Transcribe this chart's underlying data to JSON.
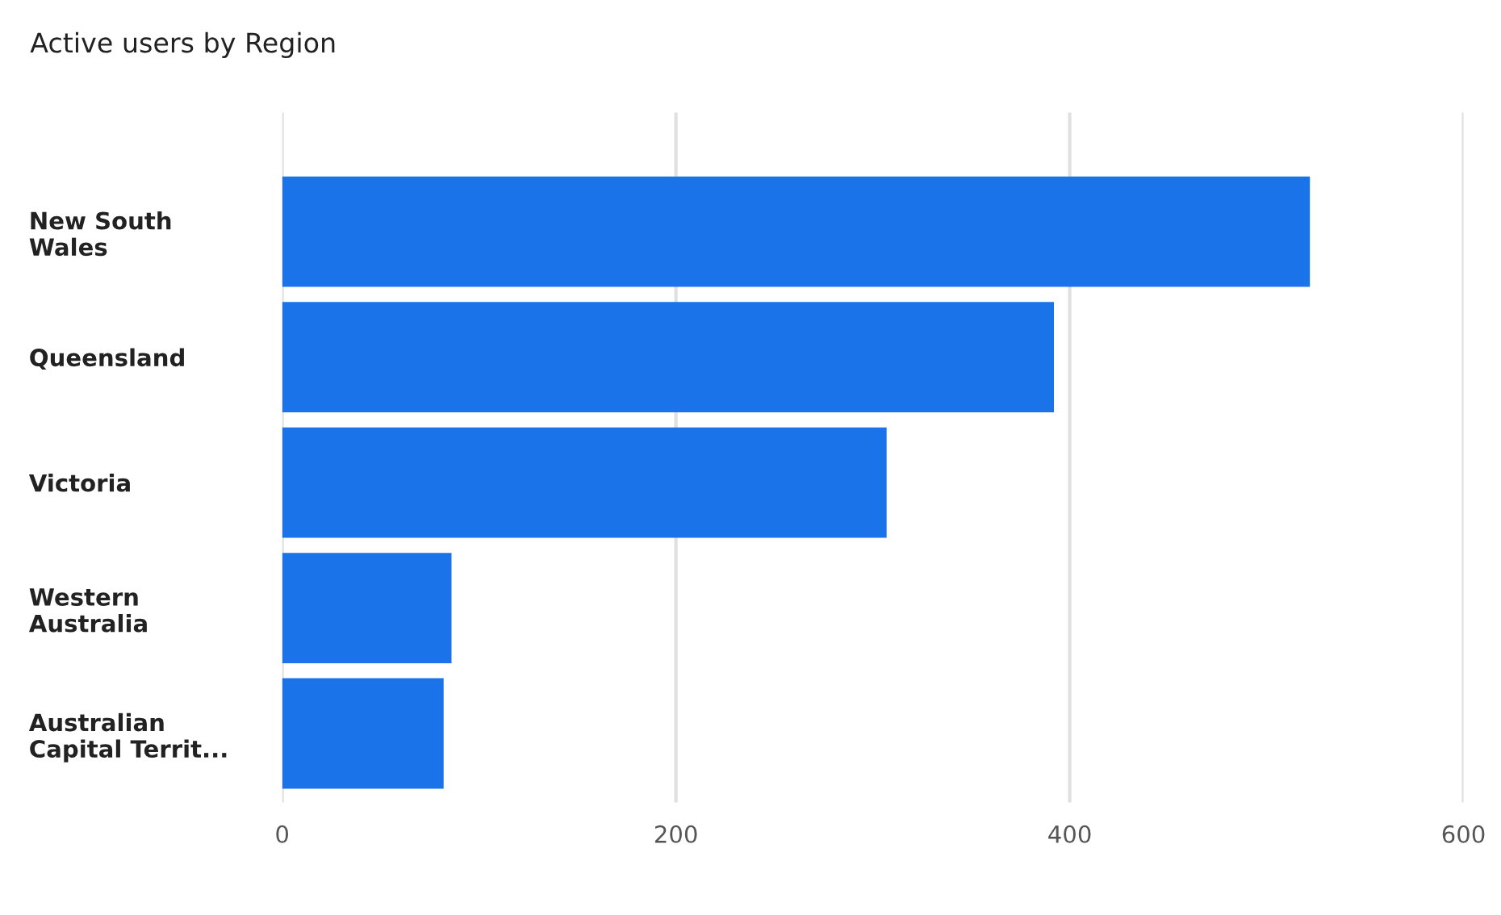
{
  "chart_data": {
    "type": "bar",
    "title": "Active users by Region",
    "orientation": "horizontal",
    "categories": [
      "New South\nWales",
      "Queensland",
      "Victoria",
      "Western\nAustralia",
      "Australian\nCapital Territ..."
    ],
    "values": [
      522,
      392,
      307,
      86,
      82
    ],
    "color": "#1a73e8",
    "xlim": [
      0,
      600
    ],
    "xticks": [
      0,
      200,
      400,
      600
    ],
    "grid": "x",
    "legend": false
  }
}
